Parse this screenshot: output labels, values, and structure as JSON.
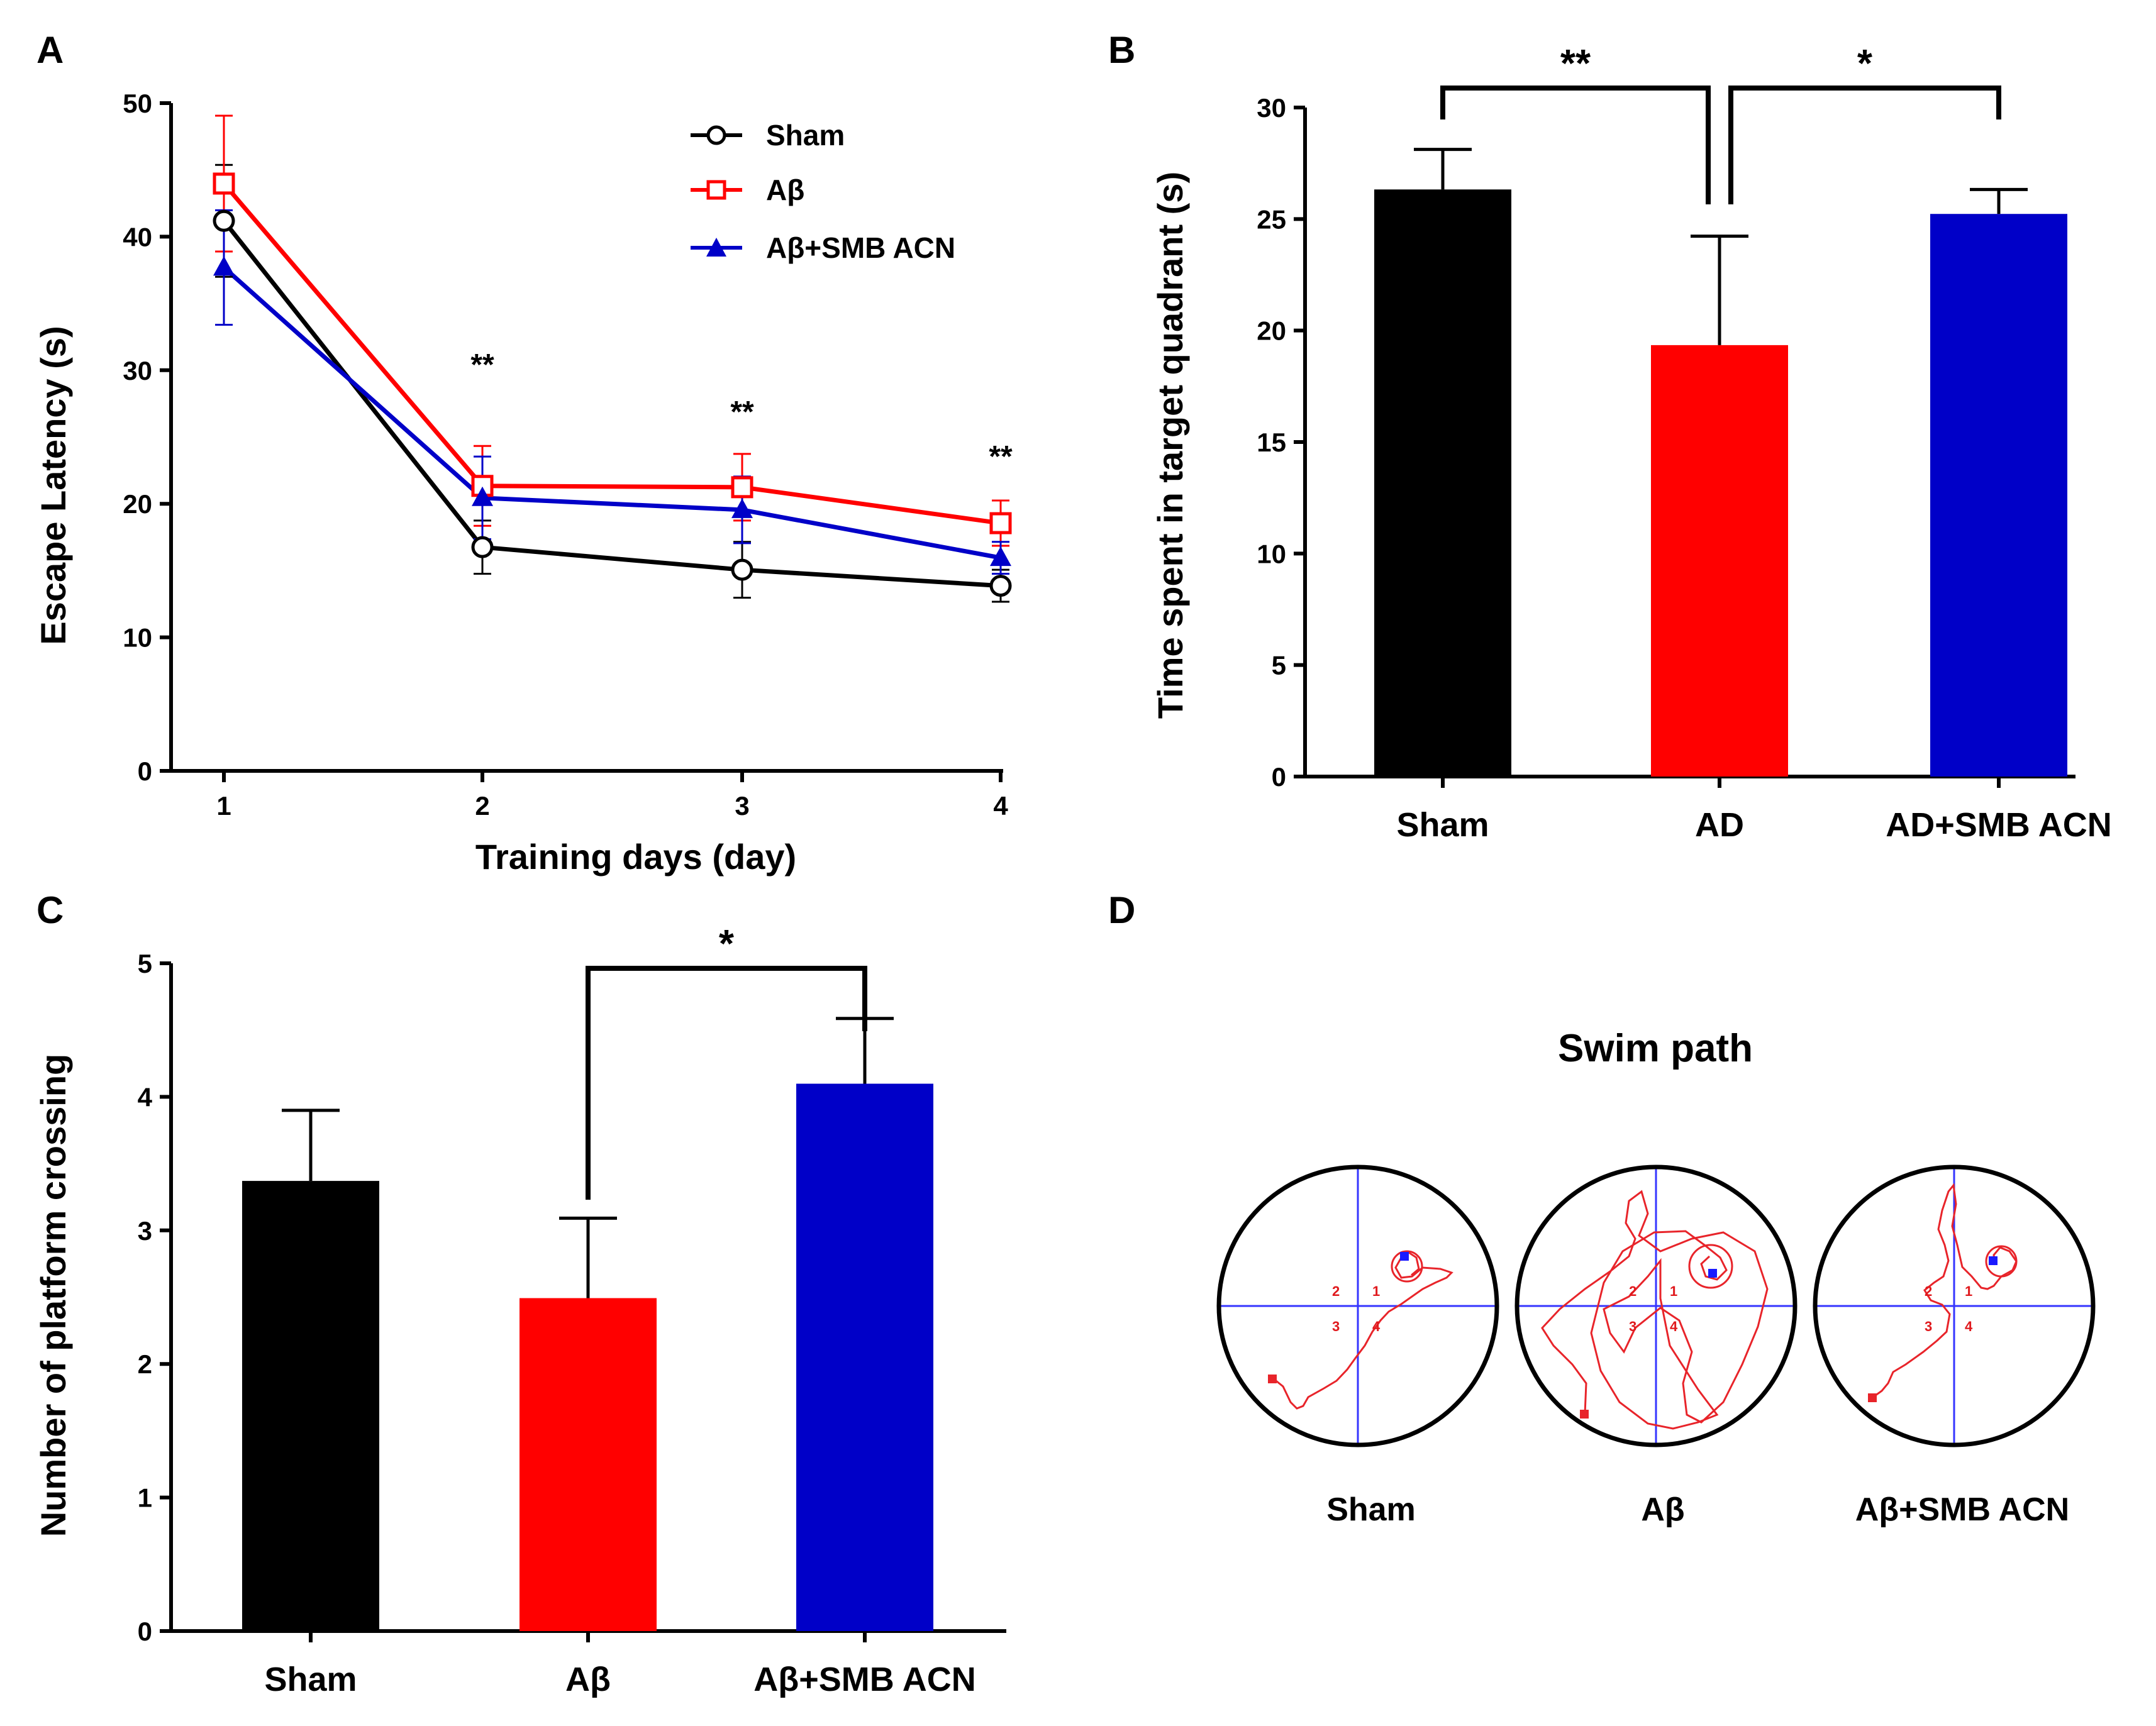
{
  "colors": {
    "sham": "#000000",
    "abeta": "#ff0000",
    "treat": "#0000c8",
    "path": "#e8242a",
    "cross": "#3535ff"
  },
  "panels": {
    "a": "A",
    "b": "B",
    "c": "C",
    "d": "D"
  },
  "chart_data": [
    {
      "id": "A",
      "type": "line",
      "xlabel": "Training days (day)",
      "ylabel": "Escape Latency (s)",
      "categories": [
        "1",
        "2",
        "3",
        "4"
      ],
      "ylim": [
        0,
        50
      ],
      "yticks": [
        "0",
        "10",
        "20",
        "30",
        "40",
        "50"
      ],
      "series": [
        {
          "name": "Sham",
          "values": [
            41.3,
            16.8,
            15.1,
            13.9
          ],
          "err": [
            4.2,
            2.0,
            2.1,
            1.2
          ],
          "marker": "circle-open"
        },
        {
          "name": "Aβ",
          "values": [
            44.1,
            21.4,
            21.3,
            18.6
          ],
          "err": [
            5.1,
            3.0,
            2.5,
            1.7
          ],
          "marker": "square-open"
        },
        {
          "name": "Aβ+SMB ACN",
          "values": [
            37.8,
            20.5,
            19.6,
            16.0
          ],
          "err": [
            4.3,
            3.1,
            2.5,
            1.2
          ],
          "marker": "triangle-filled"
        }
      ],
      "annotations": [
        {
          "x": "2",
          "text": "**"
        },
        {
          "x": "3",
          "text": "**"
        },
        {
          "x": "4",
          "text": "**"
        }
      ]
    },
    {
      "id": "B",
      "type": "bar",
      "ylabel": "Time spent in target quadrant (s)",
      "categories": [
        "Sham",
        "AD",
        "AD+SMB ACN"
      ],
      "values": [
        26.4,
        19.4,
        25.3
      ],
      "err": [
        1.8,
        4.9,
        1.1
      ],
      "ylim": [
        0,
        30
      ],
      "yticks": [
        "0",
        "5",
        "10",
        "15",
        "20",
        "25",
        "30"
      ],
      "significance": [
        {
          "from": "Sham",
          "to": "AD",
          "text": "**"
        },
        {
          "from": "AD",
          "to": "AD+SMB ACN",
          "text": "*"
        }
      ]
    },
    {
      "id": "C",
      "type": "bar",
      "ylabel": "Number of platform crossing",
      "categories": [
        "Sham",
        "Aβ",
        "Aβ+SMB ACN"
      ],
      "values": [
        3.38,
        2.5,
        4.11
      ],
      "err": [
        0.53,
        0.6,
        0.49
      ],
      "ylim": [
        0,
        5
      ],
      "yticks": [
        "0",
        "1",
        "2",
        "3",
        "4",
        "5"
      ],
      "significance": [
        {
          "from": "Aβ",
          "to": "Aβ+SMB ACN",
          "text": "*"
        }
      ]
    }
  ],
  "swim": {
    "title": "Swim path",
    "quadrant_labels": [
      "1",
      "2",
      "3",
      "4"
    ],
    "groups": [
      "Sham",
      "Aβ",
      "Aβ+SMB ACN"
    ]
  }
}
